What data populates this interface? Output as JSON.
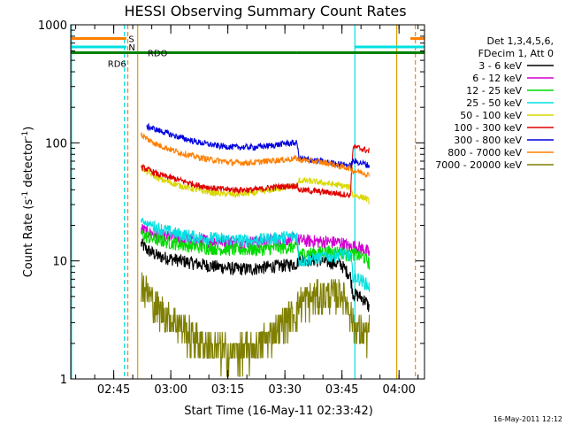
{
  "chart_data": {
    "type": "line",
    "title": "HESSI Observing Summary Count Rates",
    "xlabel": "Start Time (16-May-11 02:33:42)",
    "ylabel_main": "Count Rate (s",
    "ylabel_sup1": "-1",
    "ylabel_mid": " detector",
    "ylabel_sup2": "-1",
    "ylabel_end": ")",
    "yscale": "log",
    "ylim": [
      1,
      1000
    ],
    "xlim_minutes": [
      0,
      93
    ],
    "yticks": [
      "1",
      "10",
      "100",
      "1000"
    ],
    "xticks": [
      {
        "label": "02:45",
        "minute": 11.3
      },
      {
        "label": "03:00",
        "minute": 26.3
      },
      {
        "label": "03:15",
        "minute": 41.3
      },
      {
        "label": "03:30",
        "minute": 56.3
      },
      {
        "label": "03:45",
        "minute": 71.3
      },
      {
        "label": "04:00",
        "minute": 86.3
      }
    ],
    "legend_header": [
      "Det 1,3,4,5,6,",
      "FDecim 1, Att 0"
    ],
    "legend_position": "right",
    "timestamp": "16-May-2011 12:12",
    "series": [
      {
        "name": "3 - 6 keV",
        "color": "#000000",
        "points": [
          [
            18.5,
            14
          ],
          [
            20,
            12.5
          ],
          [
            23,
            11
          ],
          [
            28,
            10.2
          ],
          [
            33,
            9.5
          ],
          [
            38,
            9
          ],
          [
            43,
            8.6
          ],
          [
            48,
            8.6
          ],
          [
            53,
            9
          ],
          [
            56.5,
            9.2
          ],
          [
            59.5,
            9.5
          ],
          [
            60,
            10.5
          ],
          [
            64,
            10.2
          ],
          [
            68,
            9.8
          ],
          [
            71,
            9.4
          ],
          [
            73.5,
            7.5
          ],
          [
            74.2,
            5.3
          ],
          [
            76,
            5
          ],
          [
            77.5,
            4.6
          ],
          [
            78.5,
            4
          ]
        ]
      },
      {
        "name": "6 - 12 keV",
        "color": "#d200d2",
        "points": [
          [
            18.5,
            19
          ],
          [
            20,
            17.5
          ],
          [
            23,
            16.5
          ],
          [
            28,
            15.5
          ],
          [
            33,
            15
          ],
          [
            38,
            14.8
          ],
          [
            43,
            14.5
          ],
          [
            48,
            14.5
          ],
          [
            53,
            15
          ],
          [
            56.5,
            15.2
          ],
          [
            59.5,
            15.5
          ],
          [
            60,
            15
          ],
          [
            64,
            14.7
          ],
          [
            68,
            14.5
          ],
          [
            71,
            14.4
          ],
          [
            73.5,
            13
          ],
          [
            74.2,
            13.5
          ],
          [
            76,
            13
          ],
          [
            77.5,
            12.5
          ],
          [
            78.5,
            11.5
          ]
        ]
      },
      {
        "name": "12 - 25 keV",
        "color": "#00dc00",
        "points": [
          [
            18.5,
            17
          ],
          [
            20,
            16
          ],
          [
            23,
            15
          ],
          [
            28,
            14
          ],
          [
            33,
            13.2
          ],
          [
            38,
            12.8
          ],
          [
            43,
            12.5
          ],
          [
            48,
            12.5
          ],
          [
            53,
            12.8
          ],
          [
            56.5,
            13
          ],
          [
            59.5,
            13.2
          ],
          [
            60,
            11.5
          ],
          [
            64,
            11.8
          ],
          [
            68,
            12
          ],
          [
            71,
            12
          ],
          [
            73.5,
            11
          ],
          [
            74.2,
            11.5
          ],
          [
            76,
            11
          ],
          [
            77.5,
            10.5
          ],
          [
            78.5,
            9.5
          ]
        ]
      },
      {
        "name": "25 - 50 keV",
        "color": "#00e0e0",
        "points": [
          [
            18.5,
            22
          ],
          [
            20,
            21
          ],
          [
            23,
            19
          ],
          [
            28,
            17
          ],
          [
            33,
            16
          ],
          [
            38,
            15.5
          ],
          [
            43,
            15
          ],
          [
            48,
            15
          ],
          [
            53,
            15.5
          ],
          [
            56.5,
            16
          ],
          [
            59.5,
            16.2
          ],
          [
            60,
            10
          ],
          [
            64,
            10.5
          ],
          [
            68,
            11
          ],
          [
            71,
            11.5
          ],
          [
            73.5,
            11
          ],
          [
            74.2,
            7.5
          ],
          [
            76,
            7
          ],
          [
            77.5,
            6.5
          ],
          [
            78.5,
            6
          ]
        ]
      },
      {
        "name": "50 - 100 keV",
        "color": "#d8d800",
        "points": [
          [
            18.5,
            62
          ],
          [
            20,
            57
          ],
          [
            23,
            50
          ],
          [
            28,
            44
          ],
          [
            33,
            40
          ],
          [
            38,
            37.5
          ],
          [
            43,
            36.5
          ],
          [
            48,
            37.5
          ],
          [
            53,
            40
          ],
          [
            56.5,
            42
          ],
          [
            59.5,
            43
          ],
          [
            60,
            48
          ],
          [
            64,
            47
          ],
          [
            68,
            45
          ],
          [
            71,
            43.5
          ],
          [
            73.5,
            42
          ],
          [
            74.2,
            36
          ],
          [
            76,
            35
          ],
          [
            77.5,
            34
          ],
          [
            78.5,
            32
          ]
        ]
      },
      {
        "name": "100 - 300 keV",
        "color": "#e00000",
        "points": [
          [
            18.5,
            62
          ],
          [
            20,
            60
          ],
          [
            23,
            54
          ],
          [
            28,
            49
          ],
          [
            33,
            44
          ],
          [
            38,
            41
          ],
          [
            43,
            40
          ],
          [
            48,
            40
          ],
          [
            53,
            42
          ],
          [
            56.5,
            43
          ],
          [
            59.5,
            43.5
          ],
          [
            60,
            40
          ],
          [
            64,
            39
          ],
          [
            68,
            38
          ],
          [
            71,
            37
          ],
          [
            73.5,
            36
          ],
          [
            74.2,
            93
          ],
          [
            76,
            90
          ],
          [
            77.5,
            87
          ],
          [
            78.5,
            85
          ]
        ]
      },
      {
        "name": "300 - 800 keV",
        "color": "#0000e0",
        "points": [
          [
            20,
            138
          ],
          [
            23,
            128
          ],
          [
            28,
            113
          ],
          [
            33,
            102
          ],
          [
            38,
            95
          ],
          [
            43,
            92
          ],
          [
            48,
            92
          ],
          [
            53,
            95
          ],
          [
            56.5,
            99
          ],
          [
            59.5,
            100
          ],
          [
            60,
            74
          ],
          [
            64,
            71
          ],
          [
            68,
            68
          ],
          [
            71,
            66
          ],
          [
            73.5,
            64
          ],
          [
            74.2,
            70
          ],
          [
            76,
            68
          ],
          [
            77.5,
            66
          ],
          [
            78.5,
            64
          ]
        ]
      },
      {
        "name": "800 - 7000 keV",
        "color": "#ff7f00",
        "points": [
          [
            18.5,
            118
          ],
          [
            20,
            108
          ],
          [
            23,
            96
          ],
          [
            28,
            84
          ],
          [
            33,
            76
          ],
          [
            38,
            71
          ],
          [
            43,
            68
          ],
          [
            48,
            68
          ],
          [
            53,
            71
          ],
          [
            56.5,
            72
          ],
          [
            59.5,
            74
          ],
          [
            60,
            72
          ],
          [
            64,
            70
          ],
          [
            68,
            67
          ],
          [
            71,
            63
          ],
          [
            73.5,
            61
          ],
          [
            74.2,
            58
          ],
          [
            76,
            57
          ],
          [
            77.5,
            55
          ],
          [
            78.5,
            53
          ]
        ]
      },
      {
        "name": "7000 - 20000 keV",
        "color": "#7f7f00",
        "points": [
          [
            18.5,
            7
          ],
          [
            20,
            5.5
          ],
          [
            23,
            4
          ],
          [
            28,
            3
          ],
          [
            33,
            2.2
          ],
          [
            38,
            1.8
          ],
          [
            43,
            1.7
          ],
          [
            48,
            1.8
          ],
          [
            53,
            2.5
          ],
          [
            56.5,
            3.2
          ],
          [
            59.5,
            3.8
          ],
          [
            60,
            4.5
          ],
          [
            64,
            5
          ],
          [
            68,
            5.2
          ],
          [
            71,
            5.5
          ],
          [
            73.5,
            4
          ],
          [
            74.2,
            3
          ],
          [
            76,
            2.5
          ],
          [
            77.5,
            2.5
          ],
          [
            78.5,
            2.5
          ]
        ]
      }
    ],
    "status_bars": [
      {
        "label": "S",
        "color": "#ff7f00",
        "y": 765,
        "segments": [
          [
            0,
            14.6
          ],
          [
            89.3,
            93
          ]
        ]
      },
      {
        "label": "N",
        "color": "#00e0e0",
        "y": 650,
        "segments": [
          [
            0,
            14.6
          ],
          [
            74.7,
            93
          ]
        ]
      },
      {
        "label": "RDO",
        "color": "#008000",
        "y": 580,
        "segments": [
          [
            0,
            17.6
          ],
          [
            17.6,
            20.6
          ],
          [
            20.6,
            59.5
          ],
          [
            59.5,
            66.5
          ],
          [
            66.5,
            93
          ]
        ]
      }
    ],
    "status_labels": {
      "S": "S",
      "N": "N",
      "RD6": "RD6",
      "RDO": "RDO"
    },
    "vertical_lines": [
      {
        "minute": 0.2,
        "color": "#00e0e0",
        "dash": false
      },
      {
        "minute": 14.1,
        "color": "#00e0e0",
        "dash": true
      },
      {
        "minute": 15.0,
        "color": "#ff7f00",
        "dash": true
      },
      {
        "minute": 17.6,
        "color": "#d8a000",
        "dash": false
      },
      {
        "minute": 74.7,
        "color": "#00e0e0",
        "dash": false
      },
      {
        "minute": 85.7,
        "color": "#d8a000",
        "dash": false
      },
      {
        "minute": 90.6,
        "color": "#ff7f00",
        "dash": true
      }
    ]
  }
}
